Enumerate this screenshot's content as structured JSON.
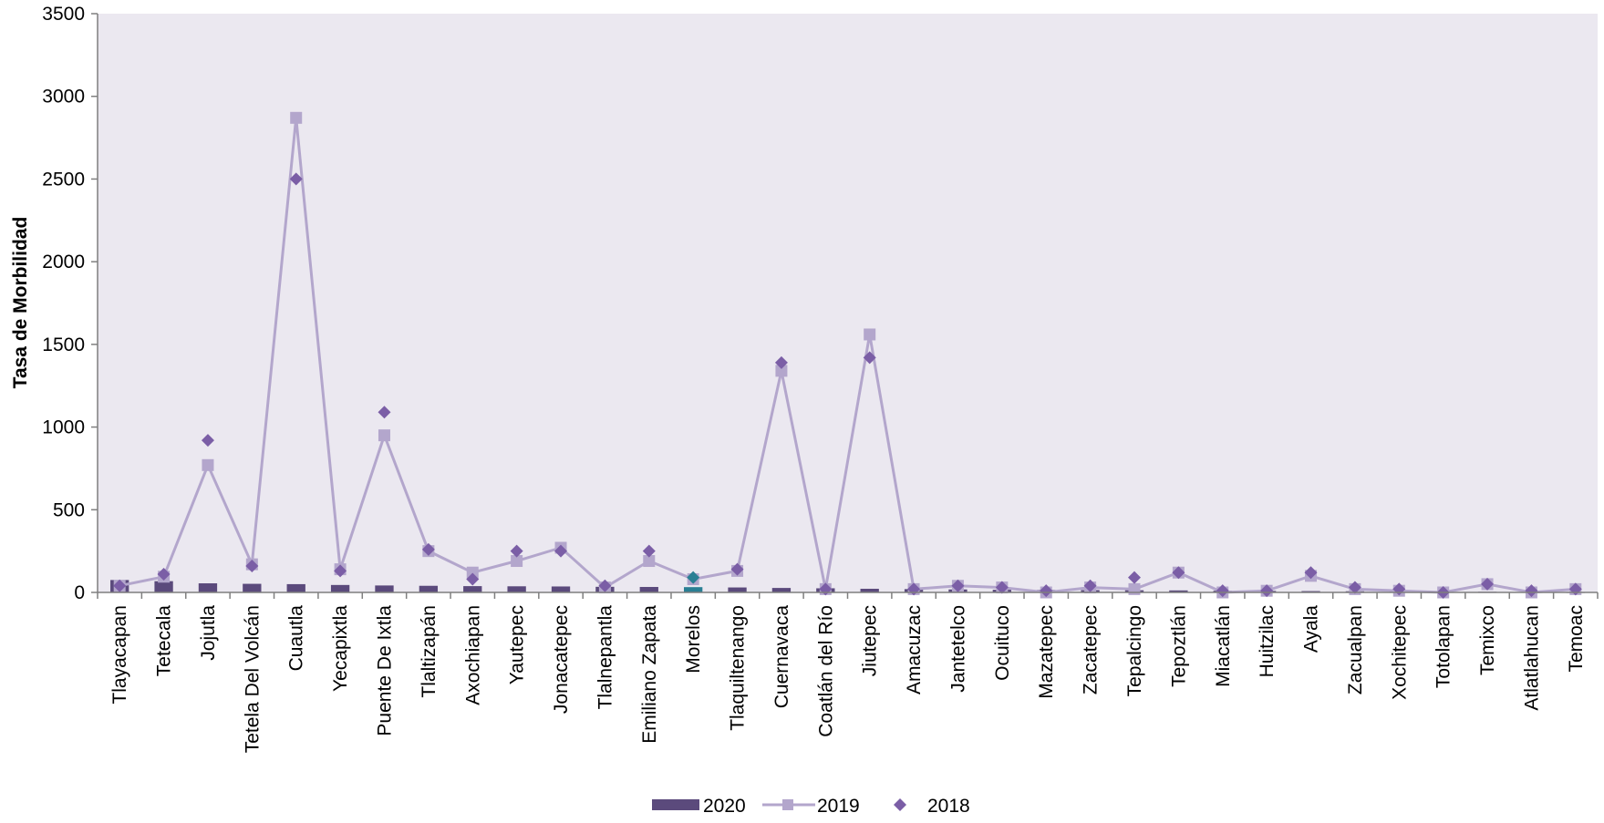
{
  "chart_data": {
    "type": "bar",
    "ylabel": "Tasa de Morbilidad",
    "ylim": [
      0,
      3500
    ],
    "yticks": [
      0,
      500,
      1000,
      1500,
      2000,
      2500,
      3000,
      3500
    ],
    "grid": false,
    "legend_position": "bottom",
    "categories": [
      "Tlayacapan",
      "Tetecala",
      "Jojutla",
      "Tetela Del Volcán",
      "Cuautla",
      "Yecapixtla",
      "Puente De Ixtla",
      "Tlaltizapán",
      "Axochiapan",
      "Yautepec",
      "Jonacatepec",
      "Tlalnepantla",
      "Emiliano Zapata",
      "Morelos",
      "Tlaquiltenango",
      "Cuernavaca",
      "Coatlán del Río",
      "Jiutepec",
      "Amacuzac",
      "Jantetelco",
      "Ocuituco",
      "Mazatepec",
      "Zacatepec",
      "Tepalcingo",
      "Tepoztlán",
      "Miacatlán",
      "Huitzilac",
      "Ayala",
      "Zacualpan",
      "Xochitepec",
      "Totolapan",
      "Temixco",
      "Atlatlahucan",
      "Temoac"
    ],
    "highlight_category": "Morelos",
    "series": [
      {
        "name": "2020",
        "kind": "bar",
        "color": "#5b4a7c",
        "values": [
          75,
          68,
          55,
          52,
          50,
          45,
          42,
          40,
          38,
          37,
          36,
          34,
          33,
          32,
          30,
          27,
          25,
          22,
          20,
          18,
          16,
          15,
          14,
          13,
          12,
          10,
          9,
          8,
          7,
          6,
          5,
          4,
          3,
          2
        ]
      },
      {
        "name": "2019",
        "kind": "line",
        "color": "#b3a6cc",
        "values": [
          40,
          95,
          770,
          170,
          2870,
          140,
          950,
          250,
          120,
          190,
          270,
          30,
          190,
          80,
          130,
          1340,
          20,
          1560,
          20,
          40,
          30,
          0,
          30,
          20,
          120,
          0,
          10,
          100,
          20,
          10,
          0,
          50,
          0,
          20
        ]
      },
      {
        "name": "2018",
        "kind": "marker",
        "color": "#7b5ea6",
        "values": [
          40,
          110,
          920,
          160,
          2500,
          130,
          1090,
          260,
          80,
          250,
          250,
          40,
          250,
          90,
          140,
          1390,
          20,
          1420,
          20,
          40,
          30,
          10,
          40,
          90,
          120,
          10,
          10,
          120,
          30,
          20,
          0,
          50,
          10,
          20
        ]
      }
    ],
    "colors": {
      "plot_bg": "#ebe8f0",
      "axis": "#7f7f7f",
      "highlight": "#2a7f94"
    }
  }
}
